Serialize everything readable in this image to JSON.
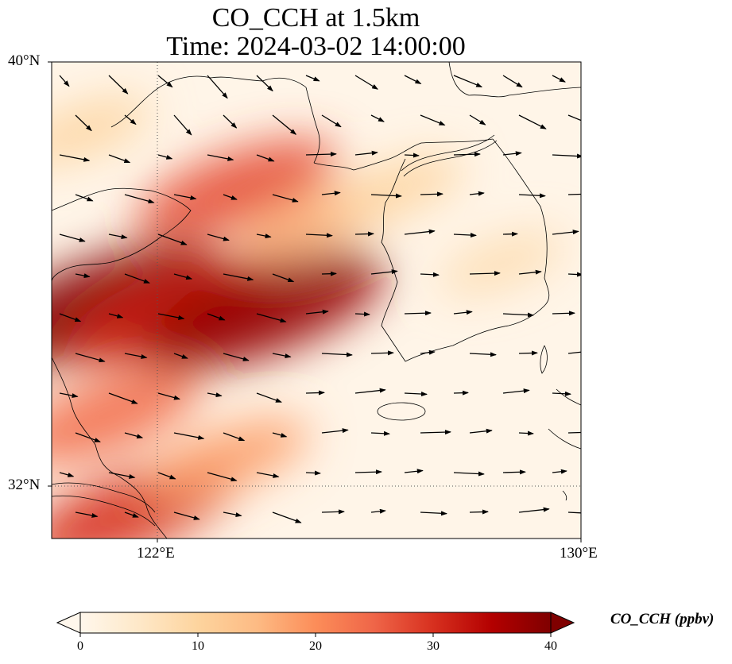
{
  "title": {
    "line1": "CO_CCH at 1.5km",
    "line2": "Time: 2024-03-02 14:00:00"
  },
  "map": {
    "lon_range": [
      120,
      130
    ],
    "lat_range": [
      31,
      40
    ],
    "lat_ticks": [
      {
        "value": 40,
        "label": "40°N"
      },
      {
        "value": 32,
        "label": "32°N"
      }
    ],
    "lon_ticks": [
      {
        "value": 122,
        "label": "122°E"
      },
      {
        "value": 130,
        "label": "130°E"
      }
    ],
    "gridlines": {
      "lon": [
        122
      ],
      "lat": [
        32
      ],
      "style": "dotted"
    },
    "field": {
      "variable": "CO_CCH",
      "units": "ppbv",
      "plumes": [
        {
          "lon": 120.9,
          "lat": 35.4,
          "value": 40
        },
        {
          "lon": 122.3,
          "lat": 35.3,
          "value": 32
        },
        {
          "lon": 124.0,
          "lat": 35.3,
          "value": 38
        },
        {
          "lon": 123.5,
          "lat": 37.6,
          "value": 27
        },
        {
          "lon": 125.0,
          "lat": 37.0,
          "value": 16
        },
        {
          "lon": 121.0,
          "lat": 33.3,
          "value": 24
        },
        {
          "lon": 121.5,
          "lat": 31.5,
          "value": 30
        },
        {
          "lon": 123.3,
          "lat": 32.5,
          "value": 18
        },
        {
          "lon": 126.5,
          "lat": 37.6,
          "value": 10
        },
        {
          "lon": 128.5,
          "lat": 36.2,
          "value": 8
        },
        {
          "lon": 120.6,
          "lat": 38.7,
          "value": 10
        }
      ]
    },
    "wind_vectors": "quiver arrows, predominantly westerly to north-westerly"
  },
  "colorbar": {
    "title": "CO_CCH (ppbv)",
    "colormap": "OrRd",
    "min": 0,
    "max": 40,
    "extend": "both",
    "ticks": [
      0,
      10,
      20,
      30,
      40
    ],
    "tick_labels": [
      "0",
      "10",
      "20",
      "30",
      "40"
    ]
  }
}
